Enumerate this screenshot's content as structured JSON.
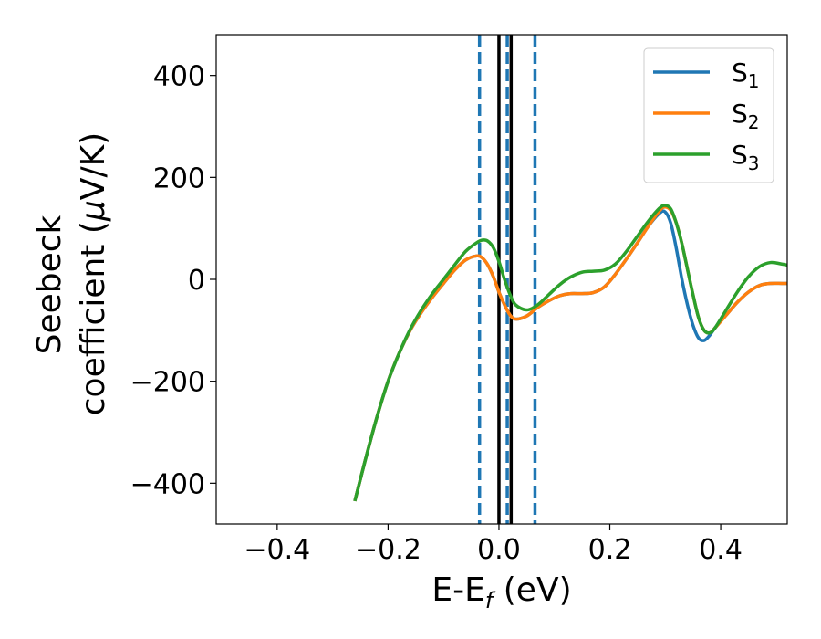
{
  "chart_data": {
    "type": "line",
    "xlabel": {
      "base": "E-E",
      "sub": "f",
      "suffix": " (eV)"
    },
    "ylabel": {
      "line1": "Seebeck",
      "line2_prefix": "coefficient  (",
      "mu": "μ",
      "line2_suffix": "V/K)"
    },
    "xlim": [
      -0.51,
      0.52
    ],
    "ylim": [
      -480,
      480
    ],
    "xticks": [
      -0.4,
      -0.2,
      0.0,
      0.2,
      0.4
    ],
    "xtick_labels": [
      "−0.4",
      "−0.2",
      "0.0",
      "0.2",
      "0.4"
    ],
    "yticks": [
      -400,
      -200,
      0,
      200,
      400
    ],
    "ytick_labels": [
      "−400",
      "−200",
      "0",
      "200",
      "400"
    ],
    "grid": false,
    "legend_position": "top-right",
    "series": [
      {
        "name": "S",
        "sub": "1",
        "color": "#1f77b4",
        "x": [
          -0.26,
          -0.24,
          -0.22,
          -0.2,
          -0.18,
          -0.16,
          -0.14,
          -0.12,
          -0.1,
          -0.08,
          -0.06,
          -0.04,
          -0.03,
          -0.02,
          -0.01,
          0.0,
          0.01,
          0.02,
          0.03,
          0.05,
          0.07,
          0.09,
          0.11,
          0.13,
          0.15,
          0.17,
          0.19,
          0.21,
          0.23,
          0.25,
          0.27,
          0.29,
          0.3,
          0.31,
          0.32,
          0.33,
          0.34,
          0.35,
          0.36,
          0.37,
          0.38,
          0.39,
          0.41,
          0.43,
          0.45,
          0.47,
          0.49,
          0.51,
          0.52
        ],
        "y": [
          -435,
          -350,
          -270,
          -200,
          -145,
          -100,
          -65,
          -35,
          -8,
          18,
          38,
          46,
          42,
          28,
          5,
          -25,
          -50,
          -70,
          -78,
          -72,
          -55,
          -42,
          -32,
          -28,
          -28,
          -26,
          -15,
          10,
          40,
          72,
          105,
          130,
          132,
          110,
          60,
          0,
          -50,
          -90,
          -115,
          -120,
          -110,
          -95,
          -70,
          -45,
          -25,
          -12,
          -8,
          -8,
          -8
        ]
      },
      {
        "name": "S",
        "sub": "2",
        "color": "#ff7f0e",
        "x": [
          -0.26,
          -0.24,
          -0.22,
          -0.2,
          -0.18,
          -0.16,
          -0.14,
          -0.12,
          -0.1,
          -0.08,
          -0.06,
          -0.04,
          -0.03,
          -0.02,
          -0.01,
          0.0,
          0.01,
          0.02,
          0.03,
          0.05,
          0.07,
          0.09,
          0.11,
          0.13,
          0.15,
          0.17,
          0.19,
          0.21,
          0.23,
          0.25,
          0.27,
          0.29,
          0.3,
          0.31,
          0.32,
          0.33,
          0.34,
          0.35,
          0.36,
          0.37,
          0.38,
          0.39,
          0.41,
          0.43,
          0.45,
          0.47,
          0.49,
          0.51,
          0.52
        ],
        "y": [
          -435,
          -350,
          -270,
          -200,
          -145,
          -100,
          -65,
          -35,
          -8,
          18,
          38,
          46,
          42,
          28,
          5,
          -25,
          -50,
          -70,
          -78,
          -72,
          -55,
          -42,
          -32,
          -28,
          -28,
          -26,
          -15,
          10,
          40,
          72,
          105,
          135,
          142,
          135,
          110,
          70,
          20,
          -30,
          -75,
          -100,
          -105,
          -95,
          -70,
          -45,
          -25,
          -12,
          -8,
          -8,
          -8
        ]
      },
      {
        "name": "S",
        "sub": "3",
        "color": "#2ca02c",
        "x": [
          -0.26,
          -0.24,
          -0.22,
          -0.2,
          -0.18,
          -0.16,
          -0.14,
          -0.12,
          -0.1,
          -0.08,
          -0.06,
          -0.04,
          -0.03,
          -0.02,
          -0.01,
          0.0,
          0.01,
          0.02,
          0.03,
          0.05,
          0.07,
          0.09,
          0.11,
          0.13,
          0.15,
          0.17,
          0.19,
          0.21,
          0.23,
          0.25,
          0.27,
          0.29,
          0.3,
          0.31,
          0.32,
          0.33,
          0.34,
          0.35,
          0.36,
          0.37,
          0.38,
          0.39,
          0.41,
          0.43,
          0.45,
          0.47,
          0.49,
          0.51,
          0.52
        ],
        "y": [
          -435,
          -350,
          -270,
          -200,
          -145,
          -98,
          -60,
          -28,
          0,
          28,
          55,
          72,
          77,
          75,
          62,
          35,
          0,
          -30,
          -50,
          -60,
          -50,
          -30,
          -10,
          5,
          14,
          16,
          18,
          30,
          55,
          85,
          115,
          140,
          145,
          138,
          110,
          70,
          20,
          -30,
          -75,
          -100,
          -105,
          -95,
          -60,
          -25,
          5,
          25,
          33,
          30,
          28
        ]
      }
    ],
    "vlines": [
      {
        "x": -0.035,
        "style": "dashed",
        "color": "#1f77b4"
      },
      {
        "x": 0.0,
        "style": "solid",
        "color": "#000000"
      },
      {
        "x": 0.015,
        "style": "dashed",
        "color": "#1f77b4"
      },
      {
        "x": 0.022,
        "style": "solid",
        "color": "#000000"
      },
      {
        "x": 0.065,
        "style": "dashed",
        "color": "#1f77b4"
      }
    ]
  }
}
